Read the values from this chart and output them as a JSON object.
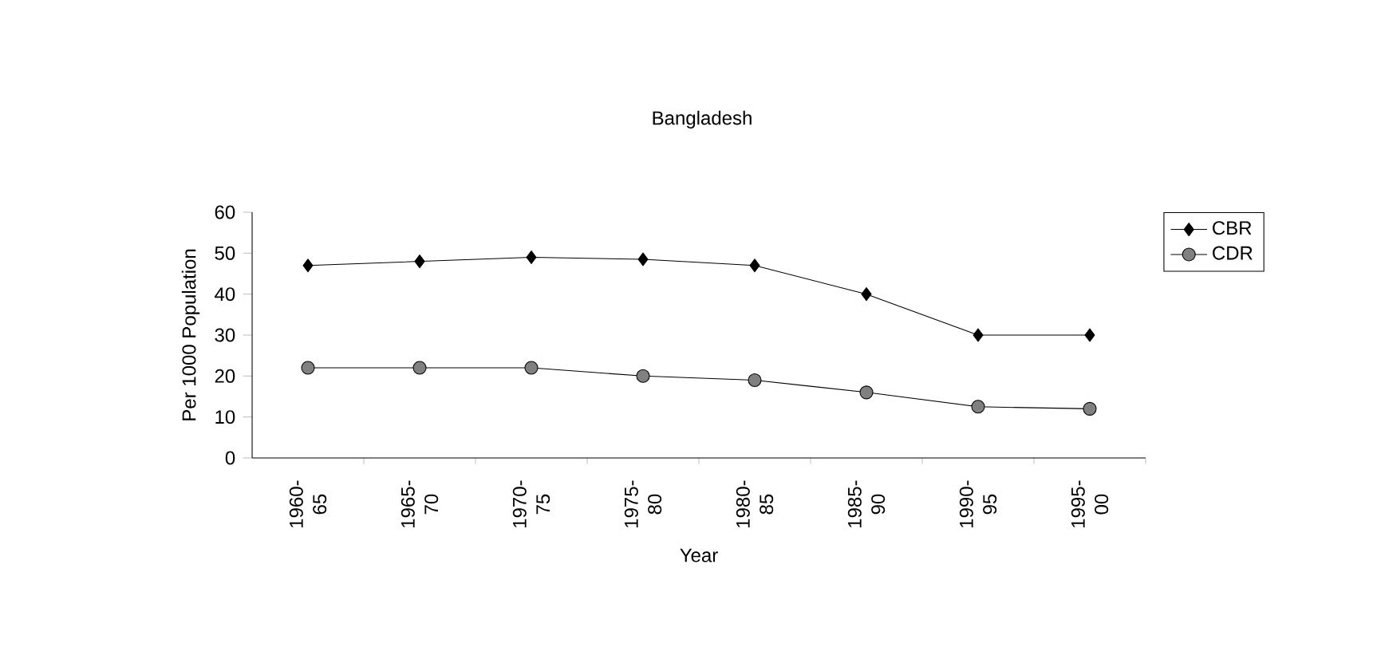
{
  "chart_data": {
    "type": "line",
    "title": "Bangladesh",
    "xlabel": "Year",
    "ylabel": "Per 1000 Population",
    "categories": [
      "1960-65",
      "1965-70",
      "1970-75",
      "1975-80",
      "1980-85",
      "1985-90",
      "1990-95",
      "1995-00"
    ],
    "series": [
      {
        "name": "CBR",
        "color": "#000000",
        "marker": "diamond",
        "values": [
          47,
          48,
          49,
          48.5,
          47,
          40,
          30,
          30
        ]
      },
      {
        "name": "CDR",
        "color": "#808080",
        "marker": "circle",
        "values": [
          22,
          22,
          22,
          20,
          19,
          16,
          12.5,
          12
        ]
      }
    ],
    "ylim": [
      0,
      60
    ],
    "yticks": [
      0,
      10,
      20,
      30,
      40,
      50,
      60
    ],
    "grid": false,
    "legend": "right",
    "line_style": "solid"
  }
}
